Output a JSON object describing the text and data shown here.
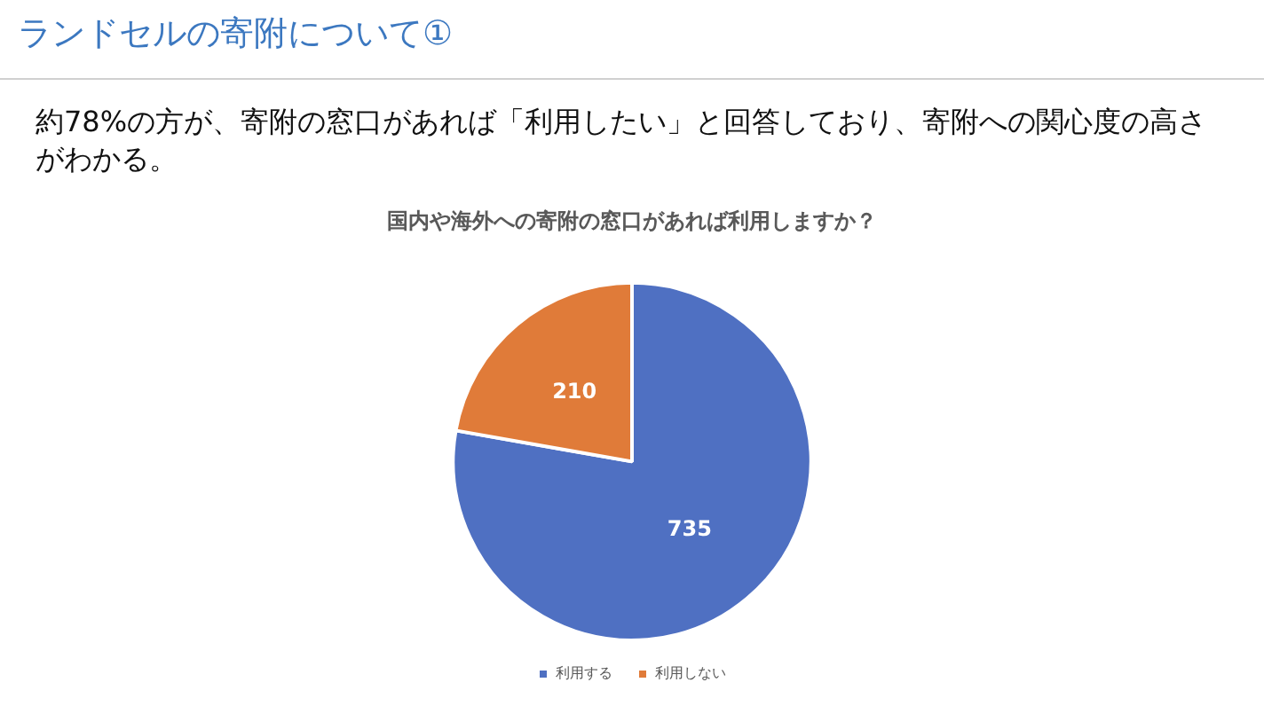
{
  "chart_data": {
    "type": "pie",
    "title": "国内や海外への寄附の窓口があれば利用しますか？",
    "categories": [
      "利用する",
      "利用しない"
    ],
    "values": [
      735,
      210
    ],
    "colors": [
      "#4f70c2",
      "#e07b39"
    ],
    "data_labels": true,
    "legend": "bottom",
    "annotations": [
      "ランドセルの寄附について①",
      "約78%の方が、寄附の窓口があれば「利用したい」と回答しており、寄附への関心度の高さがわかる。"
    ]
  }
}
